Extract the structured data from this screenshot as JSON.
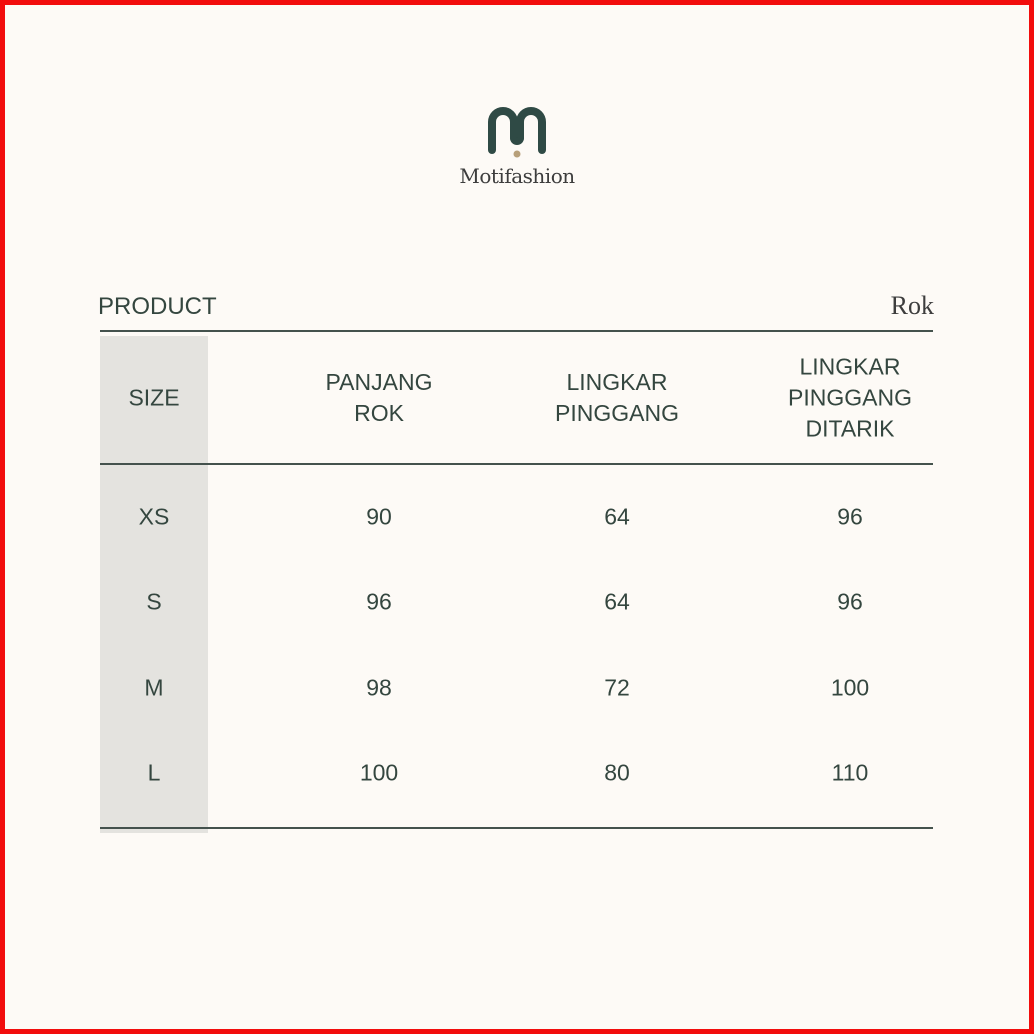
{
  "brand": {
    "name": "Motifashion",
    "colors": {
      "primary": "#2f4a45",
      "dot": "#b8a07a"
    }
  },
  "product": {
    "label": "PRODUCT",
    "value": "Rok"
  },
  "table": {
    "headers": [
      "SIZE",
      "PANJANG\nROK",
      "LINGKAR\nPINGGANG",
      "LINGKAR\nPINGGANG\nDITARIK"
    ],
    "rows": [
      [
        "XS",
        "90",
        "64",
        "96"
      ],
      [
        "S",
        "96",
        "64",
        "96"
      ],
      [
        "M",
        "98",
        "72",
        "100"
      ],
      [
        "L",
        "100",
        "80",
        "110"
      ]
    ]
  }
}
